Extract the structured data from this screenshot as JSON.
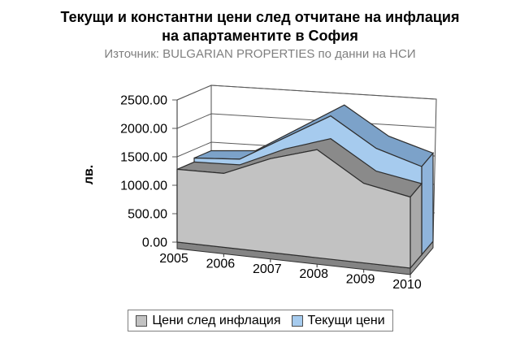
{
  "window": {
    "background": "#FFFFFF"
  },
  "title": {
    "line1": "Текущи и константни цени след отчитане на инфлация",
    "line2": "на апартаментите в София",
    "color": "#000000"
  },
  "subtitle": {
    "text": "Източник: BULGARIAN PROPERTIES по данни на НСИ",
    "color": "#7F7F7F"
  },
  "chart_data": {
    "type": "area",
    "style": "3d-area",
    "categories": [
      "2005",
      "2006",
      "2007",
      "2008",
      "2009",
      "2010"
    ],
    "series": [
      {
        "name": "Цени след инфлация",
        "values": [
          1280,
          1300,
          1650,
          1900,
          1400,
          1250
        ],
        "color": "#C2C2C2",
        "cap_color": "#8A8A8A",
        "side_color": "#A9A9A9"
      },
      {
        "name": "Текущи цени",
        "values": [
          1350,
          1400,
          1850,
          2300,
          1800,
          1550
        ],
        "color": "#A6CBEE",
        "cap_color": "#7CA2C9",
        "side_color": "#8FB4DB"
      }
    ],
    "ylabel": "лв.",
    "ylim": [
      0,
      2500
    ],
    "ytick_step": 500,
    "yticks": [
      "0.00",
      "500.00",
      "1000.00",
      "1500.00",
      "2000.00",
      "2500.00"
    ],
    "grid": true,
    "legend_position": "bottom",
    "wall_color": "#FFFFFF",
    "floor_color": "#848484",
    "floor_side_color": "#9A9A9A",
    "axis_color": "#4D4D4D",
    "gridline_color": "#5A5A5A",
    "edge_color": "#2E2E2E"
  },
  "legend": {
    "items": [
      {
        "label": "Цени след инфлация",
        "swatch": "#C2C2C2"
      },
      {
        "label": "Текущи цени",
        "swatch": "#A6CBEE"
      }
    ]
  }
}
